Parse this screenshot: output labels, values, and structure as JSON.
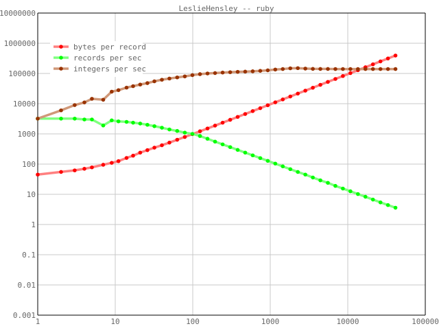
{
  "chart_data": {
    "type": "line",
    "title": "LeslieHensley -- ruby",
    "xlabel": "",
    "ylabel": "",
    "x_scale": "log",
    "y_scale": "log",
    "xlim": [
      1,
      100000
    ],
    "ylim": [
      0.001,
      10000000
    ],
    "grid": true,
    "legend_position": "top-left",
    "x_ticks": [
      "1",
      "10",
      "100",
      "1000",
      "10000",
      "100000"
    ],
    "y_ticks": [
      "0.001",
      "0.01",
      "0.1",
      "1",
      "10",
      "100",
      "1000",
      "10000",
      "100000",
      "1000000",
      "10000000"
    ],
    "x": [
      1,
      2,
      3,
      4,
      5,
      7,
      9,
      11,
      14,
      17,
      21,
      26,
      32,
      40,
      50,
      63,
      79,
      99,
      124,
      155,
      194,
      243,
      304,
      380,
      475,
      594,
      743,
      929,
      1161,
      1451,
      1814,
      2268,
      2835,
      3544,
      4430,
      5538,
      6922,
      8653,
      10816,
      13520,
      16900,
      21125,
      26406,
      33008,
      41260
    ],
    "series": [
      {
        "name": "bytes per record",
        "line_color": "#ff8080",
        "marker_color": "#ff0000",
        "values": [
          45,
          55,
          62,
          70,
          78,
          95,
          110,
          125,
          160,
          190,
          240,
          290,
          350,
          420,
          515,
          640,
          790,
          980,
          1220,
          1510,
          1880,
          2350,
          2930,
          3650,
          4550,
          5680,
          7100,
          8870,
          11070,
          13830,
          17270,
          21580,
          26970,
          33710,
          42130,
          52650,
          65800,
          82240,
          102790,
          128480,
          160590,
          200730,
          250900,
          313620,
          392010
        ]
      },
      {
        "name": "records per sec",
        "line_color": "#80ff80",
        "marker_color": "#00ff00",
        "values": [
          3200,
          3200,
          3200,
          3000,
          3000,
          1900,
          2800,
          2600,
          2500,
          2350,
          2200,
          2000,
          1800,
          1600,
          1400,
          1250,
          1100,
          1000,
          850,
          690,
          555,
          450,
          365,
          295,
          240,
          195,
          158,
          128,
          104,
          84,
          68,
          55,
          45,
          36,
          29,
          24,
          19,
          15.5,
          12.6,
          10.2,
          8.3,
          6.7,
          5.4,
          4.4,
          3.6
        ]
      },
      {
        "name": "integers per sec",
        "line_color": "#d09878",
        "marker_color": "#993300",
        "values": [
          3200,
          6000,
          9000,
          11000,
          14500,
          13500,
          25000,
          28000,
          34000,
          38000,
          43000,
          48000,
          55000,
          62000,
          68000,
          74000,
          80000,
          88000,
          95000,
          100000,
          103000,
          107000,
          110000,
          113000,
          115000,
          118000,
          122000,
          127000,
          135000,
          140000,
          148000,
          150000,
          145000,
          142000,
          141000,
          141000,
          140000,
          140000,
          140000,
          140000,
          140000,
          140000,
          140000,
          140000,
          140000
        ]
      }
    ]
  }
}
